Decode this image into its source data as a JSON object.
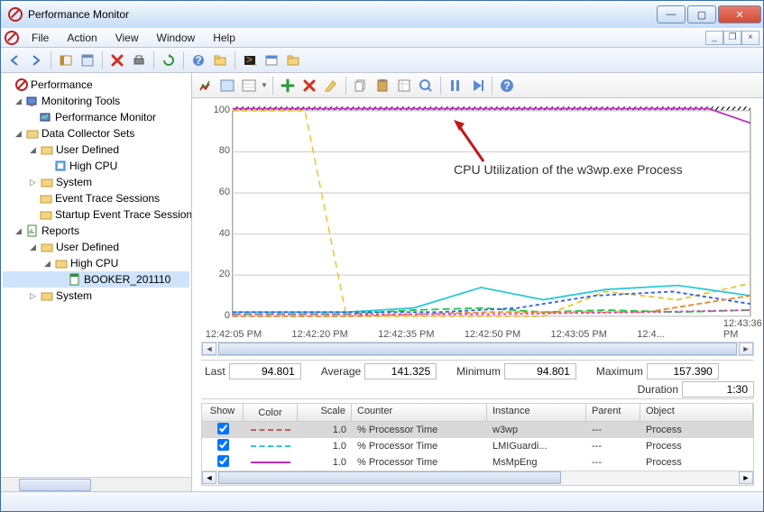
{
  "window": {
    "title": "Performance Monitor"
  },
  "menu": {
    "file": "File",
    "action": "Action",
    "view": "View",
    "window": "Window",
    "help": "Help"
  },
  "tree": {
    "root": "Performance",
    "mt": "Monitoring Tools",
    "pm": "Performance Monitor",
    "dcs": "Data Collector Sets",
    "ud": "User Defined",
    "highcpu": "High CPU",
    "system": "System",
    "ets": "Event Trace Sessions",
    "sets": "Startup Event Trace Sessions",
    "reports": "Reports",
    "rud": "User Defined",
    "rhighcpu": "High CPU",
    "booker": "BOOKER_201110",
    "rsystem": "System"
  },
  "chart": {
    "annot": "CPU Utilization of the w3wp.exe Process",
    "y": {
      "min": 0,
      "max": 100,
      "ticks": [
        0,
        20,
        40,
        60,
        80,
        100
      ],
      "grid_color": "#d6d6d6"
    },
    "x_labels": [
      "12:42:05 PM",
      "12:42:20 PM",
      "12:42:35 PM",
      "12:42:50 PM",
      "12:43:05 PM",
      "12:4...",
      "12:43:36 PM"
    ],
    "top_band": {
      "y": 101,
      "color": "#000000",
      "hatch": true
    },
    "series": [
      {
        "name": "w3wp-top",
        "color": "#c030c0",
        "dash": "0",
        "pts": [
          [
            0,
            101
          ],
          [
            70,
            101
          ],
          [
            92,
            101
          ],
          [
            100,
            94
          ]
        ]
      },
      {
        "name": "yellow",
        "color": "#e8c428",
        "dash": "6 4",
        "pts": [
          [
            0,
            100
          ],
          [
            14,
            100
          ],
          [
            22,
            0
          ],
          [
            60,
            0
          ],
          [
            72,
            12
          ],
          [
            86,
            8
          ],
          [
            100,
            16
          ]
        ]
      },
      {
        "name": "cyan",
        "color": "#2bcad6",
        "dash": "0",
        "pts": [
          [
            0,
            2
          ],
          [
            22,
            2
          ],
          [
            35,
            4
          ],
          [
            48,
            14
          ],
          [
            60,
            8
          ],
          [
            72,
            13
          ],
          [
            86,
            15
          ],
          [
            100,
            10
          ]
        ]
      },
      {
        "name": "green",
        "color": "#20c840",
        "dash": "8 4",
        "pts": [
          [
            0,
            1
          ],
          [
            22,
            1
          ],
          [
            35,
            3
          ],
          [
            48,
            4
          ],
          [
            60,
            2
          ],
          [
            72,
            3
          ],
          [
            86,
            2
          ],
          [
            100,
            3
          ]
        ]
      },
      {
        "name": "blue",
        "color": "#3060e8",
        "dash": "4 3",
        "pts": [
          [
            0,
            2
          ],
          [
            22,
            2
          ],
          [
            40,
            2
          ],
          [
            55,
            4
          ],
          [
            70,
            10
          ],
          [
            85,
            12
          ],
          [
            100,
            6
          ]
        ]
      },
      {
        "name": "orange",
        "color": "#e88a30",
        "dash": "6 3",
        "pts": [
          [
            0,
            0
          ],
          [
            22,
            0
          ],
          [
            50,
            2
          ],
          [
            80,
            2
          ],
          [
            100,
            10
          ]
        ]
      },
      {
        "name": "magenta",
        "color": "#e040b8",
        "dash": "3 3",
        "pts": [
          [
            0,
            1
          ],
          [
            50,
            1
          ],
          [
            80,
            2
          ],
          [
            100,
            3
          ]
        ]
      }
    ],
    "arrow_color": "#c01818"
  },
  "stats": {
    "last_label": "Last",
    "last": "94.801",
    "avg_label": "Average",
    "avg": "141.325",
    "min_label": "Minimum",
    "min": "94.801",
    "max_label": "Maximum",
    "max": "157.390",
    "dur_label": "Duration",
    "dur": "1:30"
  },
  "counters": {
    "headers": {
      "show": "Show",
      "color": "Color",
      "scale": "Scale",
      "counter": "Counter",
      "instance": "Instance",
      "parent": "Parent",
      "object": "Object"
    },
    "rows": [
      {
        "checked": true,
        "color": "#c85a5a",
        "dash": "6 4",
        "scale": "1.0",
        "counter": "% Processor Time",
        "instance": "w3wp",
        "parent": "---",
        "object": "Process",
        "selected": true
      },
      {
        "checked": true,
        "color": "#2bcad6",
        "dash": "8 4",
        "scale": "1.0",
        "counter": "% Processor Time",
        "instance": "LMIGuardi...",
        "parent": "---",
        "object": "Process",
        "selected": false
      },
      {
        "checked": true,
        "color": "#c030c0",
        "dash": "0",
        "scale": "1.0",
        "counter": "% Processor Time",
        "instance": "MsMpEng",
        "parent": "---",
        "object": "Process",
        "selected": false
      }
    ]
  }
}
